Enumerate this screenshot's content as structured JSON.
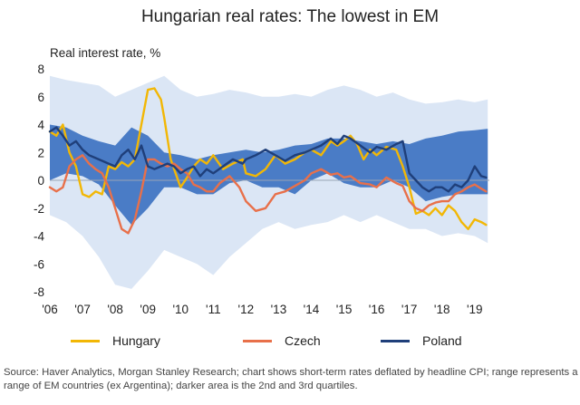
{
  "chart_data": {
    "type": "line",
    "title": "Hungarian real rates: The lowest in EM",
    "ylabel": "Real interest rate, %",
    "xlabel": "",
    "ylim": [
      -8,
      8
    ],
    "yticks": [
      8,
      6,
      4,
      2,
      0,
      -2,
      -4,
      -6,
      -8
    ],
    "xlim": [
      2006,
      2019.45
    ],
    "xticks": [
      {
        "label": "'06",
        "t": 2006
      },
      {
        "label": "'07",
        "t": 2007
      },
      {
        "label": "'08",
        "t": 2008
      },
      {
        "label": "'09",
        "t": 2009
      },
      {
        "label": "'10",
        "t": 2010
      },
      {
        "label": "'11",
        "t": 2011
      },
      {
        "label": "'12",
        "t": 2012
      },
      {
        "label": "'13",
        "t": 2013
      },
      {
        "label": "'14",
        "t": 2014
      },
      {
        "label": "'15",
        "t": 2015
      },
      {
        "label": "'16",
        "t": 2016
      },
      {
        "label": "'17",
        "t": 2017
      },
      {
        "label": "'18",
        "t": 2018
      },
      {
        "label": "'19",
        "t": 2019
      }
    ],
    "bands": [
      {
        "name": "EM range (ex Argentina)",
        "color": "#dbe6f5",
        "t": [
          2006,
          2006.5,
          2007,
          2007.5,
          2008,
          2008.5,
          2009,
          2009.5,
          2010,
          2010.5,
          2011,
          2011.5,
          2012,
          2012.5,
          2013,
          2013.5,
          2014,
          2014.5,
          2015,
          2015.5,
          2016,
          2016.5,
          2017,
          2017.5,
          2018,
          2018.5,
          2019,
          2019.4
        ],
        "upper": [
          7.5,
          7.2,
          7.0,
          6.8,
          6.0,
          6.5,
          7.0,
          7.5,
          6.5,
          6.0,
          6.2,
          6.5,
          6.3,
          6.0,
          6.0,
          6.2,
          6.0,
          6.5,
          6.8,
          6.5,
          6.0,
          6.3,
          5.8,
          5.5,
          5.6,
          5.8,
          5.6,
          5.8
        ],
        "lower": [
          -2.5,
          -3.0,
          -4.0,
          -5.5,
          -7.5,
          -7.8,
          -6.5,
          -5.0,
          -5.5,
          -6.0,
          -6.8,
          -5.5,
          -4.5,
          -3.5,
          -3.0,
          -3.5,
          -3.2,
          -3.0,
          -2.5,
          -3.0,
          -2.5,
          -3.0,
          -3.5,
          -3.5,
          -4.0,
          -3.8,
          -4.0,
          -4.5
        ]
      },
      {
        "name": "2nd and 3rd quartiles",
        "color": "#4a7cc6",
        "t": [
          2006,
          2006.5,
          2007,
          2007.5,
          2008,
          2008.5,
          2009,
          2009.5,
          2010,
          2010.5,
          2011,
          2011.5,
          2012,
          2012.5,
          2013,
          2013.5,
          2014,
          2014.5,
          2015,
          2015.5,
          2016,
          2016.5,
          2017,
          2017.5,
          2018,
          2018.5,
          2019,
          2019.4
        ],
        "upper": [
          4.0,
          3.8,
          3.2,
          2.8,
          2.5,
          3.8,
          3.2,
          2.0,
          1.8,
          1.5,
          1.8,
          2.0,
          2.2,
          2.0,
          2.2,
          2.5,
          2.6,
          3.0,
          3.0,
          2.8,
          2.6,
          2.8,
          2.6,
          3.0,
          3.2,
          3.5,
          3.6,
          3.7
        ],
        "lower": [
          0.0,
          0.5,
          0.3,
          -0.3,
          -1.8,
          -3.2,
          -2.0,
          -0.5,
          -0.5,
          -1.0,
          -1.0,
          -0.2,
          0.0,
          -0.5,
          -0.5,
          -1.0,
          0.0,
          0.5,
          -0.2,
          -0.5,
          -0.5,
          0.0,
          -0.5,
          -1.5,
          -1.2,
          -1.0,
          -1.0,
          -1.0
        ]
      }
    ],
    "series": [
      {
        "name": "Hungary",
        "color": "#f2b705",
        "t": [
          2006,
          2006.2,
          2006.4,
          2006.6,
          2006.8,
          2007,
          2007.2,
          2007.4,
          2007.6,
          2007.8,
          2008,
          2008.2,
          2008.4,
          2008.6,
          2008.8,
          2009,
          2009.2,
          2009.4,
          2009.5,
          2009.7,
          2009.85,
          2010,
          2010.2,
          2010.4,
          2010.6,
          2010.8,
          2011,
          2011.3,
          2011.6,
          2011.9,
          2012,
          2012.3,
          2012.6,
          2012.9,
          2013.2,
          2013.5,
          2013.8,
          2014,
          2014.3,
          2014.6,
          2014.8,
          2015,
          2015.2,
          2015.4,
          2015.6,
          2015.8,
          2016,
          2016.3,
          2016.6,
          2016.8,
          2017,
          2017.2,
          2017.4,
          2017.6,
          2017.8,
          2018,
          2018.2,
          2018.4,
          2018.6,
          2018.8,
          2019,
          2019.2,
          2019.35
        ],
        "values": [
          3.5,
          3.2,
          4.0,
          2.0,
          1.0,
          -1.0,
          -1.2,
          -0.8,
          -1.0,
          1.0,
          0.8,
          1.3,
          1.0,
          1.5,
          4.0,
          6.5,
          6.6,
          5.8,
          4.5,
          1.5,
          0.5,
          -0.5,
          0.2,
          1.0,
          1.5,
          1.2,
          1.8,
          0.8,
          1.2,
          1.5,
          0.5,
          0.3,
          0.8,
          1.8,
          1.2,
          1.5,
          2.0,
          2.2,
          1.8,
          2.8,
          2.5,
          2.8,
          3.2,
          2.6,
          1.5,
          2.2,
          1.8,
          2.4,
          2.2,
          1.0,
          -0.5,
          -2.4,
          -2.2,
          -2.5,
          -2.0,
          -2.5,
          -1.8,
          -2.2,
          -3.0,
          -3.5,
          -2.8,
          -3.0,
          -3.2
        ]
      },
      {
        "name": "Czech",
        "color": "#e8704a",
        "t": [
          2006,
          2006.2,
          2006.4,
          2006.6,
          2006.8,
          2007,
          2007.2,
          2007.4,
          2007.6,
          2007.8,
          2008,
          2008.2,
          2008.4,
          2008.6,
          2008.8,
          2009,
          2009.2,
          2009.4,
          2009.6,
          2009.8,
          2010,
          2010.2,
          2010.4,
          2010.6,
          2010.8,
          2011,
          2011.2,
          2011.5,
          2011.8,
          2012,
          2012.3,
          2012.6,
          2012.9,
          2013.2,
          2013.5,
          2013.8,
          2014,
          2014.3,
          2014.6,
          2014.8,
          2015,
          2015.2,
          2015.5,
          2015.8,
          2016,
          2016.3,
          2016.6,
          2016.8,
          2017,
          2017.2,
          2017.4,
          2017.6,
          2017.8,
          2018,
          2018.2,
          2018.4,
          2018.6,
          2018.8,
          2019,
          2019.2,
          2019.35
        ],
        "values": [
          -0.5,
          -0.8,
          -0.5,
          1.0,
          1.5,
          1.8,
          1.2,
          0.8,
          0.5,
          -0.5,
          -2.0,
          -3.5,
          -3.8,
          -2.8,
          -0.8,
          1.5,
          1.5,
          1.2,
          1.0,
          1.2,
          0.8,
          0.5,
          -0.3,
          -0.5,
          -0.8,
          -0.8,
          -0.2,
          0.3,
          -0.5,
          -1.5,
          -2.2,
          -2.0,
          -1.0,
          -0.8,
          -0.4,
          0.0,
          0.5,
          0.8,
          0.4,
          0.5,
          0.2,
          0.3,
          -0.2,
          -0.3,
          -0.5,
          0.2,
          -0.2,
          -0.4,
          -1.5,
          -2.0,
          -2.2,
          -1.8,
          -1.6,
          -1.5,
          -1.5,
          -1.0,
          -0.8,
          -0.5,
          -0.3,
          -0.6,
          -0.8
        ]
      },
      {
        "name": "Poland",
        "color": "#1f3f7a",
        "t": [
          2006,
          2006.2,
          2006.4,
          2006.6,
          2006.8,
          2007,
          2007.2,
          2007.4,
          2007.6,
          2007.8,
          2008,
          2008.2,
          2008.4,
          2008.6,
          2008.8,
          2009,
          2009.2,
          2009.4,
          2009.6,
          2009.8,
          2010,
          2010.2,
          2010.4,
          2010.6,
          2010.8,
          2011,
          2011.3,
          2011.6,
          2011.9,
          2012,
          2012.3,
          2012.6,
          2012.9,
          2013.2,
          2013.5,
          2013.8,
          2014,
          2014.3,
          2014.6,
          2014.8,
          2015,
          2015.2,
          2015.5,
          2015.8,
          2016,
          2016.3,
          2016.6,
          2016.8,
          2017,
          2017.2,
          2017.4,
          2017.6,
          2017.8,
          2018,
          2018.2,
          2018.4,
          2018.6,
          2018.8,
          2019,
          2019.2,
          2019.35
        ],
        "values": [
          3.5,
          3.8,
          3.2,
          2.5,
          2.8,
          2.2,
          1.8,
          1.6,
          1.4,
          1.2,
          1.0,
          1.8,
          2.2,
          1.5,
          2.5,
          1.0,
          0.8,
          1.0,
          1.2,
          1.0,
          0.5,
          0.8,
          1.0,
          0.3,
          0.8,
          0.5,
          1.0,
          1.5,
          1.2,
          1.5,
          1.8,
          2.2,
          1.8,
          1.4,
          1.8,
          2.0,
          2.2,
          2.5,
          3.0,
          2.6,
          3.2,
          3.0,
          2.5,
          2.0,
          2.4,
          2.2,
          2.6,
          2.8,
          0.5,
          0.0,
          -0.5,
          -0.8,
          -0.5,
          -0.5,
          -0.8,
          -0.3,
          -0.5,
          0.0,
          1.0,
          0.3,
          0.2
        ]
      }
    ],
    "source": "Source: Haver Analytics, Morgan Stanley Research; chart shows short-term rates deflated by headline CPI; range represents a range of EM countries (ex Argentina); darker area is the 2nd and 3rd quartiles."
  }
}
